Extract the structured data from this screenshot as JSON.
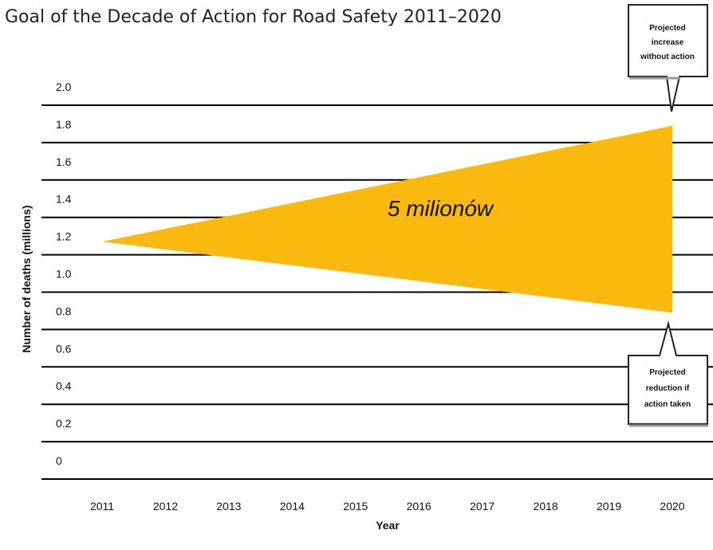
{
  "chart_data": {
    "type": "area",
    "title": "Goal of the Decade of Action for Road Safety 2011–2020",
    "xlabel": "Year",
    "ylabel": "Number of deaths (millions)",
    "ylim": [
      0,
      2.0
    ],
    "y_ticks": [
      "0",
      "0.2",
      "0.4",
      "0.6",
      "0.8",
      "1.0",
      "1.2",
      "1.4",
      "1.6",
      "1.8",
      "2.0"
    ],
    "y_tick_values": [
      0,
      0.2,
      0.4,
      0.6,
      0.8,
      1.0,
      1.2,
      1.4,
      1.6,
      1.8,
      2.0
    ],
    "x_ticks": [
      "2011",
      "2012",
      "2013",
      "2014",
      "2015",
      "2016",
      "2017",
      "2018",
      "2019",
      "2020"
    ],
    "grid": true,
    "series": [
      {
        "name": "Projected increase without action",
        "x": [
          2011,
          2020
        ],
        "y": [
          1.27,
          1.89
        ]
      },
      {
        "name": "Projected reduction if action taken",
        "x": [
          2011,
          2020
        ],
        "y": [
          1.27,
          0.89
        ]
      }
    ],
    "fill_color": "#F9B90E",
    "annotations": {
      "center": "5 milionów",
      "top_callout": [
        "Projected",
        "increase",
        "without action"
      ],
      "bottom_callout": [
        "Projected",
        "reduction if",
        "action taken"
      ]
    }
  }
}
